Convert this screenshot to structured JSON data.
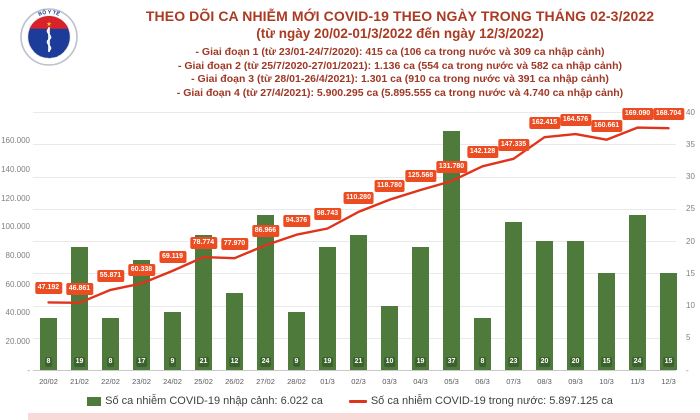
{
  "header": {
    "title_line1": "THEO DÕI CA NHIỄM MỚI COVID-19 THEO NGÀY TRONG THÁNG 02-3/2022",
    "title_line2": "(từ ngày 20/02-01/3/2022 đến ngày 12/3/2022)",
    "phases": [
      "- Giai đoạn 1 (từ 23/01-24/7/2020): 415 ca (106 ca trong nước và 309 ca nhập cảnh)",
      "- Giai đoạn 2 (từ 25/7/2020-27/01/2021): 1.136 ca (554 ca trong nước và 582 ca nhập cảnh)",
      "- Giai đoạn 3 (từ 28/01-26/4/2021): 1.301 ca (910 ca trong nước và 391 ca nhập cảnh)",
      "- Giai đoạn 4 (từ 27/4/2021): 5.900.295 ca (5.895.555 ca trong nước và 4.740 ca nhập cảnh)"
    ],
    "logo": {
      "top_text": "BỘ Y TẾ",
      "bottom_text": "MINISTRY OF HEALTH"
    }
  },
  "chart_data": {
    "type": "bar",
    "subtype": "combo-bar-line",
    "title": "THEO DÕI CA NHIỄM MỚI COVID-19 THEO NGÀY TRONG THÁNG 02-3/2022",
    "categories": [
      "20/02",
      "21/02",
      "22/02",
      "23/02",
      "24/02",
      "25/02",
      "26/02",
      "27/02",
      "28/02",
      "01/3",
      "02/3",
      "03/3",
      "04/3",
      "05/3",
      "06/3",
      "07/3",
      "08/3",
      "09/3",
      "10/3",
      "11/3",
      "12/3"
    ],
    "series": [
      {
        "name": "Số ca nhiễm COVID-19 nhập cảnh",
        "type": "bar",
        "axis": "right",
        "color": "#4e7b3c",
        "values": [
          8,
          19,
          8,
          17,
          9,
          21,
          12,
          24,
          9,
          19,
          21,
          10,
          19,
          37,
          8,
          23,
          20,
          20,
          15,
          24,
          15
        ]
      },
      {
        "name": "Số ca nhiễm COVID-19 trong nước",
        "type": "line",
        "axis": "left",
        "color": "#e0331c",
        "values": [
          47192,
          46861,
          55871,
          60338,
          69119,
          78774,
          77970,
          86966,
          94376,
          98743,
          110280,
          118780,
          125568,
          131780,
          142128,
          147335,
          162415,
          164576,
          160661,
          169090,
          168704
        ],
        "labels": [
          "47.192",
          "46.861",
          "55.871",
          "60.338",
          "69.119",
          "78.774",
          "77.970",
          "86.966",
          "94.376",
          "98.743",
          "110.280",
          "118.780",
          "125.568",
          "131.780",
          "142.128",
          "147.335",
          "162.415",
          "164.576",
          "160.661",
          "169.090",
          "168.704"
        ]
      }
    ],
    "left_axis": {
      "min": 0,
      "max": 180000,
      "tick_values": [
        0,
        20000,
        40000,
        60000,
        80000,
        100000,
        120000,
        140000,
        160000
      ],
      "tick_labels": [
        "-",
        "20.000",
        "40.000",
        "60.000",
        "80.000",
        "100.000",
        "120.000",
        "140.000",
        "160.000"
      ]
    },
    "right_axis": {
      "min": 0,
      "max": 40,
      "tick_values": [
        0,
        5,
        10,
        15,
        20,
        25,
        30,
        35,
        40
      ],
      "tick_labels": [
        "-",
        "5",
        "10",
        "15",
        "20",
        "25",
        "30",
        "35",
        "40"
      ]
    },
    "grid": "horizontal-on-right-axis-ticks",
    "legend_position": "bottom"
  },
  "legend": {
    "bar_label": "Số ca nhiễm COVID-19 nhập cảnh: 6.022 ca",
    "line_label": "Số ca nhiễm COVID-19 trong nước: 5.897.125 ca"
  },
  "colors": {
    "bar": "#4e7b3c",
    "bar_value_badge": "#3c612e",
    "line": "#e0331c",
    "line_label_badge": "#ec4c21",
    "title_text": "#ab3a22",
    "axis_text": "#808080",
    "logo_blue": "#1d3b98",
    "logo_red": "#d8232a",
    "logo_star": "#ffd32a"
  }
}
